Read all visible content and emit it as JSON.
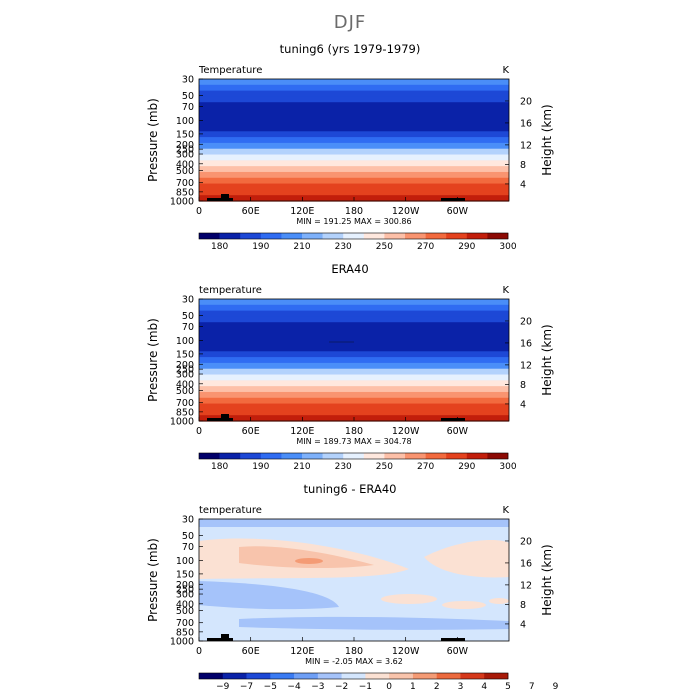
{
  "page": {
    "title": "DJF"
  },
  "palette_main": [
    "#01006a",
    "#0a22a8",
    "#1d48d6",
    "#2f6cf2",
    "#4a8ef8",
    "#7eb1fa",
    "#b3d2fc",
    "#e6f1fe",
    "#ffe8de",
    "#fdc0a8",
    "#f99470",
    "#f26a3e",
    "#e4421e",
    "#c21e0b",
    "#8c0a04"
  ],
  "palette_diff": [
    "#01006a",
    "#0a22a8",
    "#1d48d6",
    "#3a7bf3",
    "#6e9ff6",
    "#a5c3fa",
    "#d4e6fd",
    "#fbe1d3",
    "#f8c4ac",
    "#f49b75",
    "#ec6a3e",
    "#d5381a",
    "#a81a08"
  ],
  "chart_data": [
    {
      "type": "heatmap",
      "title": "tuning6 (yrs 1979-1979)",
      "field_label": "Temperature",
      "units": "K",
      "ylabel": "Pressure (mb)",
      "y2label": "Height (km)",
      "x_ticks": [
        "0",
        "60E",
        "120E",
        "180",
        "120W",
        "60W"
      ],
      "y_ticks": [
        "30",
        "50",
        "70",
        "100",
        "150",
        "200",
        "250",
        "300",
        "400",
        "500",
        "700",
        "850",
        "1000"
      ],
      "y2_ticks": [
        "20",
        "16",
        "12",
        "8",
        "4"
      ],
      "stats": "MIN = 191.25   MAX = 300.86",
      "min": 191.25,
      "max": 300.86,
      "levels": [
        "180",
        "190",
        "210",
        "230",
        "250",
        "270",
        "290",
        "300"
      ],
      "palette": "main"
    },
    {
      "type": "heatmap",
      "title": "ERA40",
      "field_label": "temperature",
      "units": "K",
      "ylabel": "Pressure (mb)",
      "y2label": "Height (km)",
      "x_ticks": [
        "0",
        "60E",
        "120E",
        "180",
        "120W",
        "60W"
      ],
      "y_ticks": [
        "30",
        "50",
        "70",
        "100",
        "150",
        "200",
        "250",
        "300",
        "400",
        "500",
        "700",
        "850",
        "1000"
      ],
      "y2_ticks": [
        "20",
        "16",
        "12",
        "8",
        "4"
      ],
      "stats": "MIN = 189.73   MAX = 304.78",
      "min": 189.73,
      "max": 304.78,
      "levels": [
        "180",
        "190",
        "210",
        "230",
        "250",
        "270",
        "290",
        "300"
      ],
      "palette": "main"
    },
    {
      "type": "heatmap",
      "title": "tuning6 - ERA40",
      "field_label": "temperature",
      "units": "K",
      "ylabel": "Pressure (mb)",
      "y2label": "Height (km)",
      "x_ticks": [
        "0",
        "60E",
        "120E",
        "180",
        "120W",
        "60W"
      ],
      "y_ticks": [
        "30",
        "50",
        "70",
        "100",
        "150",
        "200",
        "250",
        "300",
        "400",
        "500",
        "700",
        "850",
        "1000"
      ],
      "y2_ticks": [
        "20",
        "16",
        "12",
        "8",
        "4"
      ],
      "stats": "MIN = -2.05   MAX =   3.62",
      "min": -2.05,
      "max": 3.62,
      "levels": [
        "−9",
        "−7",
        "−5",
        "−4",
        "−3",
        "−2",
        "−1",
        "0",
        "1",
        "2",
        "3",
        "4",
        "5",
        "7",
        "9"
      ],
      "palette": "diff"
    }
  ]
}
